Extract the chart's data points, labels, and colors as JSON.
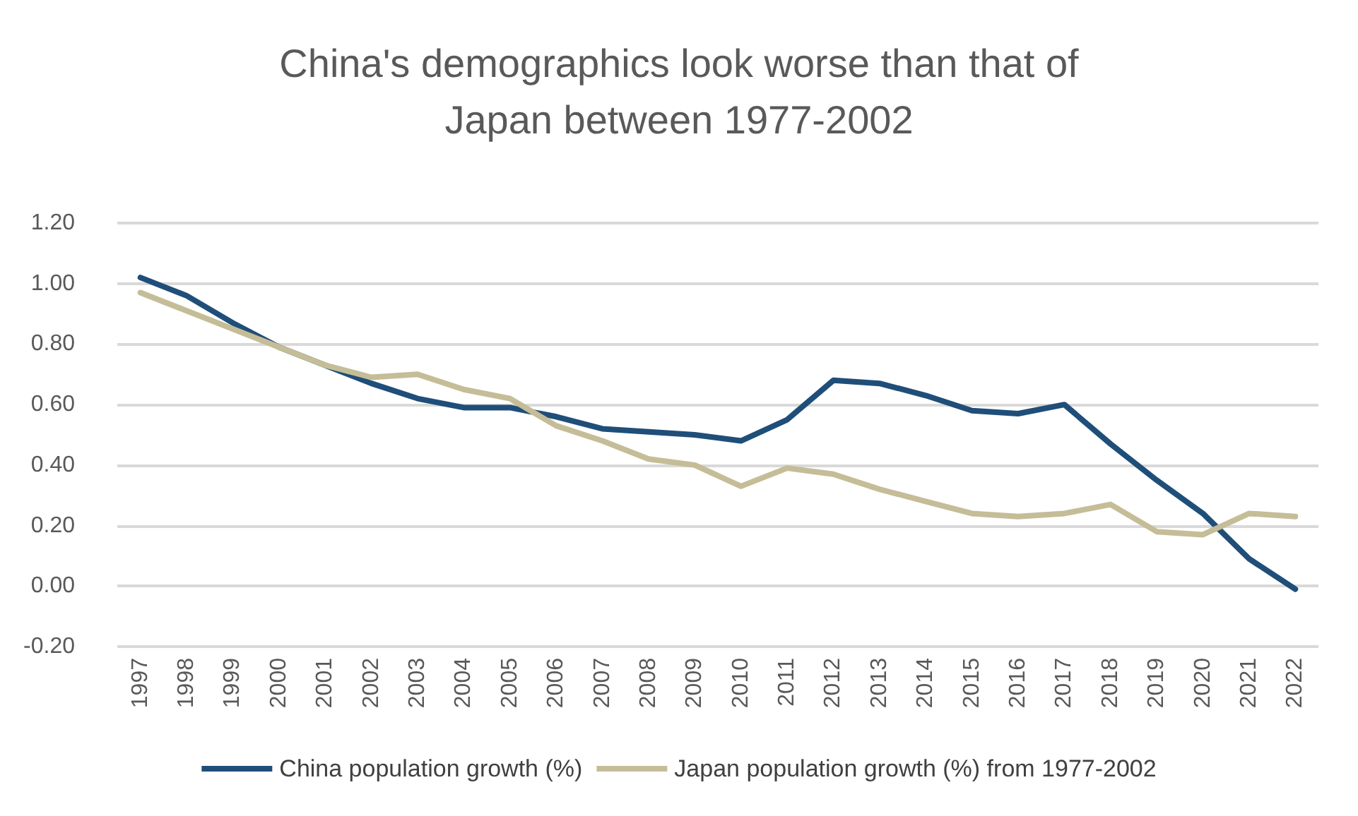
{
  "chart_data": {
    "type": "line",
    "title": "China's demographics look worse than that of\nJapan between 1977-2002",
    "categories": [
      "1997",
      "1998",
      "1999",
      "2000",
      "2001",
      "2002",
      "2003",
      "2004",
      "2005",
      "2006",
      "2007",
      "2008",
      "2009",
      "2010",
      "2011",
      "2012",
      "2013",
      "2014",
      "2015",
      "2016",
      "2017",
      "2018",
      "2019",
      "2020",
      "2021",
      "2022"
    ],
    "series": [
      {
        "name": "China population growth (%)",
        "color": "#1f4e79",
        "values": [
          1.02,
          0.96,
          0.87,
          0.79,
          0.73,
          0.67,
          0.62,
          0.59,
          0.59,
          0.56,
          0.52,
          0.51,
          0.5,
          0.48,
          0.55,
          0.68,
          0.67,
          0.63,
          0.58,
          0.57,
          0.6,
          0.47,
          0.35,
          0.24,
          0.09,
          -0.01
        ]
      },
      {
        "name": "Japan population growth (%) from 1977-2002",
        "color": "#c4bd97",
        "values": [
          0.97,
          0.91,
          0.85,
          0.79,
          0.73,
          0.69,
          0.7,
          0.65,
          0.62,
          0.53,
          0.48,
          0.42,
          0.4,
          0.33,
          0.39,
          0.37,
          0.32,
          0.28,
          0.24,
          0.23,
          0.24,
          0.27,
          0.18,
          0.17,
          0.24,
          0.23
        ]
      }
    ],
    "ylim": [
      -0.2,
      1.2
    ],
    "yticks": [
      {
        "value": -0.2,
        "label": "-0.20"
      },
      {
        "value": 0,
        "label": "0.00"
      },
      {
        "value": 0.2,
        "label": "0.20"
      },
      {
        "value": 0.4,
        "label": "0.40"
      },
      {
        "value": 0.6,
        "label": "0.60"
      },
      {
        "value": 0.8,
        "label": "0.80"
      },
      {
        "value": 1.0,
        "label": "1.00"
      },
      {
        "value": 1.2,
        "label": "1.20"
      }
    ],
    "grid": "y",
    "legend": "bottom",
    "marker": "none",
    "line_style": "solid"
  }
}
